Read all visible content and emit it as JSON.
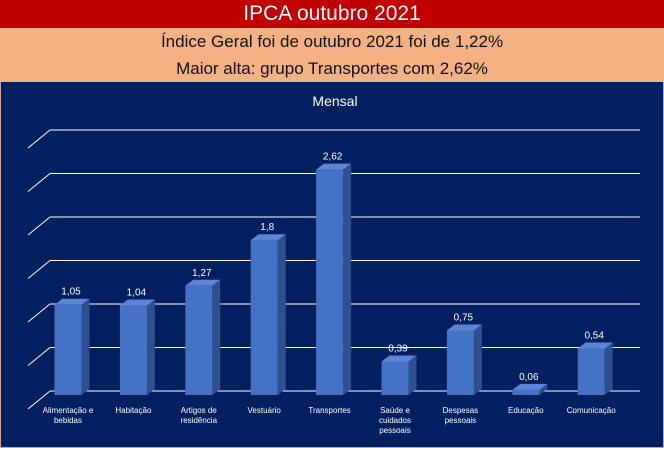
{
  "header": {
    "title": "IPCA outubro 2021",
    "line1": "Índice Geral foi de  outubro 2021 foi de 1,22%",
    "line2": "Maior alta: grupo Transportes com 2,62%"
  },
  "colors": {
    "title_bg": "#c00000",
    "subtitle_bg": "#f4b183",
    "chart_bg": "#002060",
    "bar": "#4472c4"
  },
  "chart_data": {
    "type": "bar",
    "title": "Mensal",
    "style": "3d-column",
    "grid": true,
    "ylim": [
      0,
      3
    ],
    "categories": [
      [
        "Alimentação e",
        "bebidas"
      ],
      [
        "Habitação"
      ],
      [
        "Artigos de",
        "residência"
      ],
      [
        "Vestuário"
      ],
      [
        "Transportes"
      ],
      [
        "Saúde e",
        "cuidados",
        "pessoais"
      ],
      [
        "Despesas",
        "pessoais"
      ],
      [
        "Educação"
      ],
      [
        "Comunicação"
      ]
    ],
    "values": [
      1.05,
      1.04,
      1.27,
      1.8,
      2.62,
      0.39,
      0.75,
      0.06,
      0.54
    ],
    "data_labels": [
      "1,05",
      "1,04",
      "1,27",
      "1,8",
      "2,62",
      "0,39",
      "0,75",
      "0,06",
      "0,54"
    ]
  }
}
